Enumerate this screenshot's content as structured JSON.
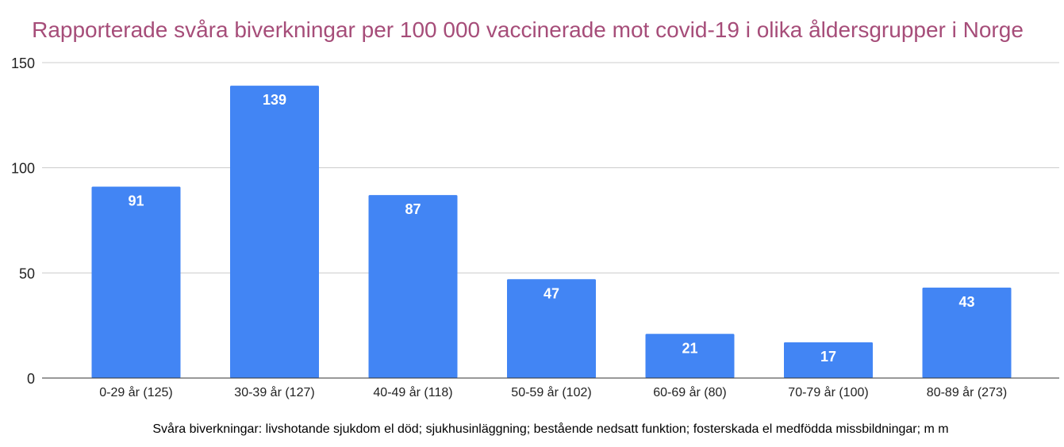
{
  "chart_data": {
    "type": "bar",
    "title": "Rapporterade svåra biverkningar per 100 000 vaccinerade mot covid-19 i olika åldersgrupper i Norge",
    "xlabel": "Svåra biverkningar: livshotande sjukdom el död; sjukhusinläggning; bestående nedsatt funktion; fosterskada el medfödda missbildningar; m m",
    "ylabel": "",
    "categories": [
      "0-29 år (125)",
      "30-39 år (127)",
      "40-49 år (118)",
      "50-59 år (102)",
      "60-69 år (80)",
      "70-79 år (100)",
      "80-89 år (273)"
    ],
    "values": [
      91,
      139,
      87,
      47,
      21,
      17,
      43
    ],
    "data_labels": [
      "91",
      "139",
      "87",
      "47",
      "21",
      "17",
      "43"
    ],
    "ylim": [
      0,
      150
    ],
    "yticks": [
      0,
      50,
      100,
      150
    ],
    "grid": true,
    "legend": "none",
    "colors": {
      "bar": "#4285f4",
      "title": "#a64d79",
      "data_label": "#ffffff",
      "grid": "#cccccc"
    }
  }
}
